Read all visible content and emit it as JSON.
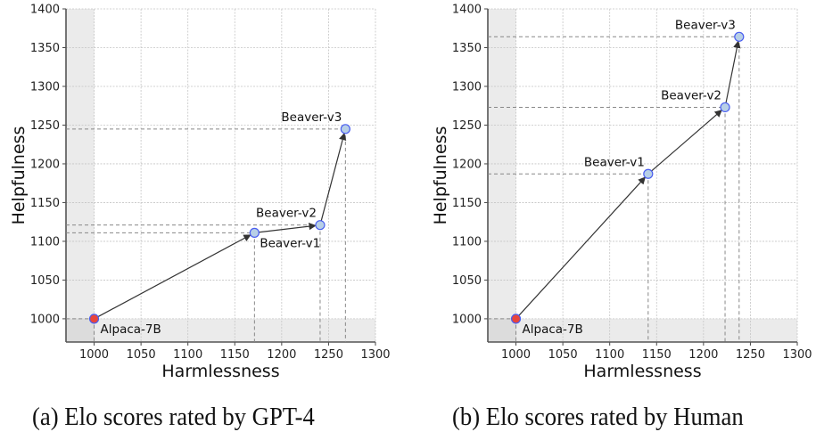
{
  "figure": {
    "captions": [
      "(a) Elo scores rated by GPT-4",
      "(b) Elo scores rated by Human"
    ]
  },
  "colors": {
    "baseline_fill": "#e8453c",
    "model_fill": "#b7cfe6",
    "marker_edge": "#4a5ef0",
    "arrow": "#333333",
    "shade": "#ebebeb",
    "shade_corner": "#dcdcdc"
  },
  "chart_data": [
    {
      "type": "scatter",
      "title": "(a) Elo scores rated by GPT-4",
      "xlabel": "Harmlessness",
      "ylabel": "Helpfulness",
      "xlim": [
        970,
        1300
      ],
      "ylim": [
        970,
        1400
      ],
      "xticks": [
        "1000",
        "1050",
        "1100",
        "1150",
        "1200",
        "1250",
        "1300"
      ],
      "yticks": [
        "1000",
        "1050",
        "1100",
        "1150",
        "1200",
        "1250",
        "1300",
        "1350",
        "1400"
      ],
      "grid": true,
      "points": [
        {
          "label": "Alpaca-7B",
          "x": 1000,
          "y": 1000,
          "baseline": true,
          "label_pos": "below-right"
        },
        {
          "label": "Beaver-v1",
          "x": 1171,
          "y": 1111,
          "baseline": false,
          "label_pos": "below-right"
        },
        {
          "label": "Beaver-v2",
          "x": 1241,
          "y": 1121,
          "baseline": false,
          "label_pos": "above-left"
        },
        {
          "label": "Beaver-v3",
          "x": 1268,
          "y": 1245,
          "baseline": false,
          "label_pos": "above-left"
        }
      ],
      "arrows": "sequential"
    },
    {
      "type": "scatter",
      "title": "(b) Elo scores rated by Human",
      "xlabel": "Harmlessness",
      "ylabel": "Helpfulness",
      "xlim": [
        970,
        1300
      ],
      "ylim": [
        970,
        1400
      ],
      "xticks": [
        "1000",
        "1050",
        "1100",
        "1150",
        "1200",
        "1250",
        "1300"
      ],
      "yticks": [
        "1000",
        "1050",
        "1100",
        "1150",
        "1200",
        "1250",
        "1300",
        "1350",
        "1400"
      ],
      "grid": true,
      "points": [
        {
          "label": "Alpaca-7B",
          "x": 1000,
          "y": 1000,
          "baseline": true,
          "label_pos": "below-right"
        },
        {
          "label": "Beaver-v1",
          "x": 1141,
          "y": 1187,
          "baseline": false,
          "label_pos": "above-left"
        },
        {
          "label": "Beaver-v2",
          "x": 1223,
          "y": 1273,
          "baseline": false,
          "label_pos": "above-left"
        },
        {
          "label": "Beaver-v3",
          "x": 1238,
          "y": 1364,
          "baseline": false,
          "label_pos": "above-left"
        }
      ],
      "arrows": "sequential"
    }
  ]
}
